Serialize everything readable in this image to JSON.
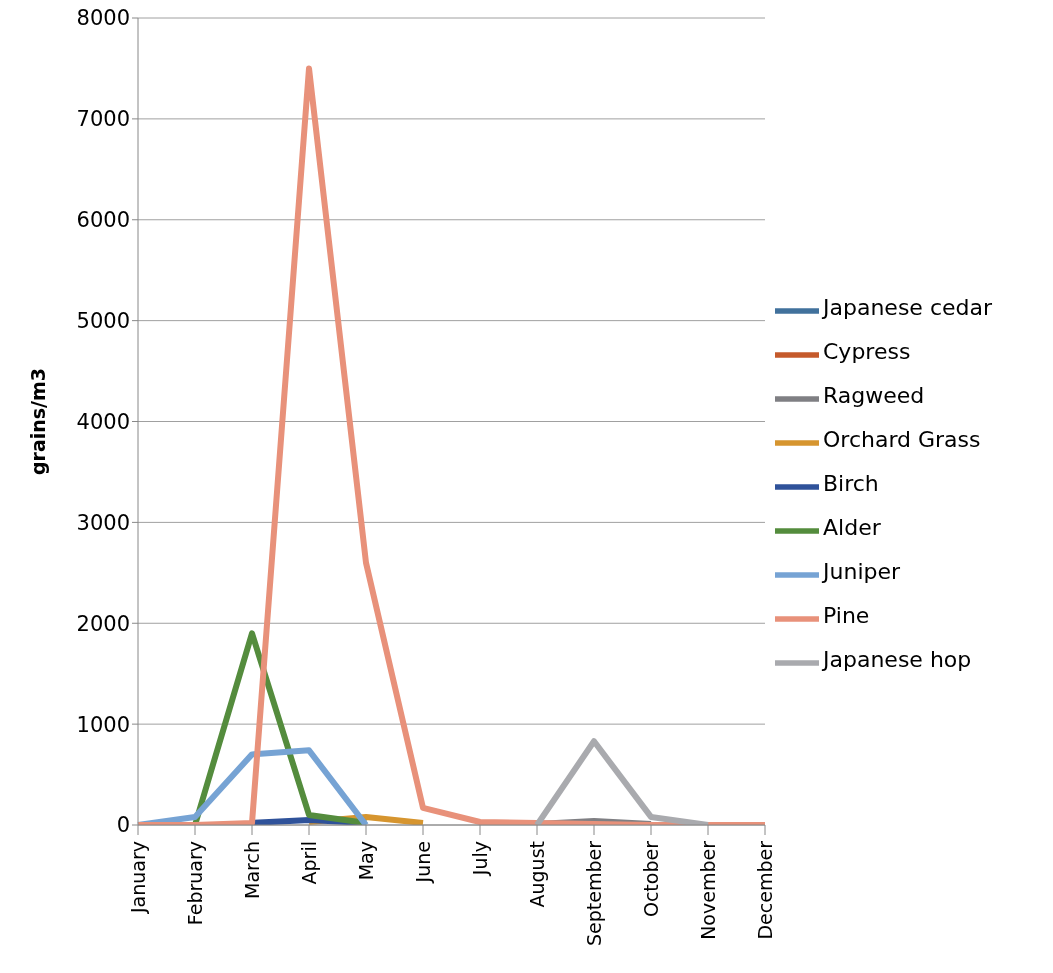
{
  "chart_data": {
    "type": "line",
    "ylabel": "grains/m3",
    "categories": [
      "January",
      "February",
      "March",
      "April",
      "May",
      "June",
      "July",
      "August",
      "September",
      "October",
      "November",
      "December"
    ],
    "series": [
      {
        "name": "Japanese cedar",
        "color": "#41719c",
        "values": [
          null,
          null,
          null,
          null,
          null,
          null,
          null,
          null,
          null,
          null,
          null,
          null
        ]
      },
      {
        "name": "Cypress",
        "color": "#c55a2b",
        "values": [
          null,
          null,
          null,
          null,
          null,
          null,
          null,
          null,
          null,
          null,
          null,
          null
        ]
      },
      {
        "name": "Ragweed",
        "color": "#7f7f83",
        "values": [
          null,
          null,
          null,
          null,
          null,
          null,
          null,
          10,
          40,
          10,
          null,
          null
        ]
      },
      {
        "name": "Orchard Grass",
        "color": "#d6952f",
        "values": [
          null,
          null,
          null,
          30,
          80,
          20,
          null,
          null,
          null,
          null,
          null,
          null
        ]
      },
      {
        "name": "Birch",
        "color": "#2f529a",
        "values": [
          null,
          null,
          20,
          50,
          20,
          null,
          null,
          null,
          null,
          null,
          null,
          null
        ]
      },
      {
        "name": "Alder",
        "color": "#548c3d",
        "values": [
          null,
          0,
          1900,
          100,
          20,
          null,
          null,
          null,
          null,
          null,
          null,
          null
        ]
      },
      {
        "name": "Juniper",
        "color": "#76a3d4",
        "values": [
          0,
          80,
          700,
          740,
          0,
          null,
          null,
          null,
          null,
          null,
          null,
          null
        ]
      },
      {
        "name": "Pine",
        "color": "#e8917a",
        "values": [
          0,
          0,
          20,
          7500,
          2600,
          170,
          30,
          20,
          10,
          0,
          0,
          0
        ]
      },
      {
        "name": "Japanese hop",
        "color": "#a9aaae",
        "values": [
          null,
          null,
          null,
          null,
          null,
          null,
          null,
          0,
          830,
          80,
          0,
          null
        ]
      }
    ],
    "ylim": [
      0,
      8000
    ],
    "yticks": [
      0,
      1000,
      2000,
      3000,
      4000,
      5000,
      6000,
      7000,
      8000
    ],
    "grid": "y",
    "legend": "right",
    "marker": "none",
    "line_style": "solid"
  }
}
